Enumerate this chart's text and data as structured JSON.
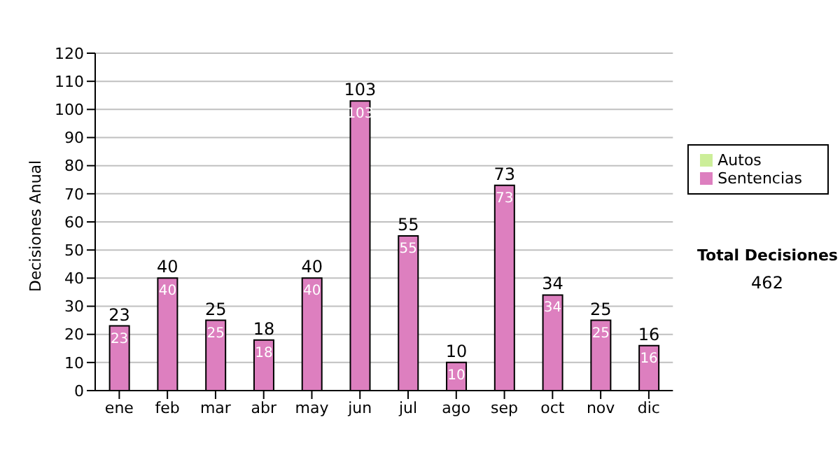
{
  "chart_data": {
    "type": "bar",
    "ylabel": "Decisiones Anual",
    "categories": [
      "ene",
      "feb",
      "mar",
      "abr",
      "may",
      "jun",
      "jul",
      "ago",
      "sep",
      "oct",
      "nov",
      "dic"
    ],
    "series": [
      {
        "name": "Sentencias",
        "color": "#dd7fbf",
        "values": [
          23,
          40,
          25,
          18,
          40,
          103,
          55,
          10,
          73,
          34,
          25,
          16
        ]
      },
      {
        "name": "Autos",
        "color": "#ccee99",
        "values": [
          null,
          null,
          null,
          null,
          null,
          null,
          null,
          null,
          null,
          null,
          null,
          null
        ]
      }
    ],
    "stacked": true,
    "data_labels": true,
    "totals": [
      "23",
      "40",
      "25",
      "18",
      "40",
      "103",
      "55",
      "10",
      "73",
      "34",
      "25",
      "16"
    ],
    "ylim": [
      0,
      120
    ],
    "yticks": [
      0,
      10,
      20,
      30,
      40,
      50,
      60,
      70,
      80,
      90,
      100,
      110,
      120
    ],
    "grid": "y",
    "legend": "right",
    "annotations": [
      "Total Decisiones",
      "462"
    ]
  }
}
